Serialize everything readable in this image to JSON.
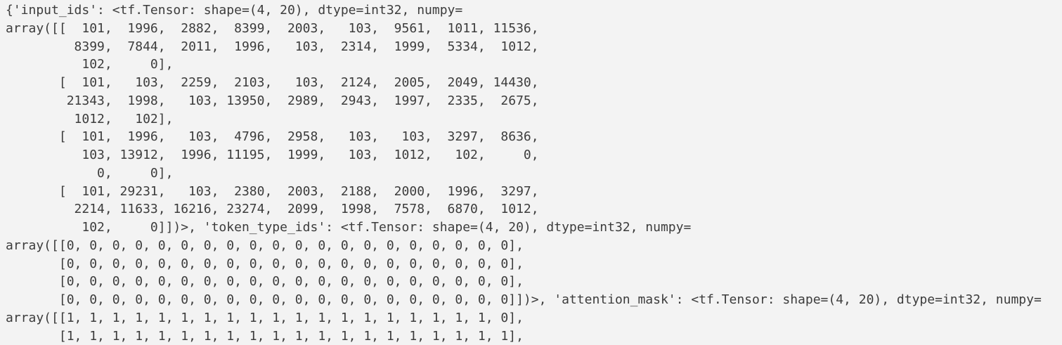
{
  "colors": {
    "background": "#f3f3f3",
    "text": "#3c3c3c"
  },
  "console": {
    "lines": [
      "{'input_ids': <tf.Tensor: shape=(4, 20), dtype=int32, numpy=",
      "array([[  101,  1996,  2882,  8399,  2003,   103,  9561,  1011, 11536,",
      "         8399,  7844,  2011,  1996,   103,  2314,  1999,  5334,  1012,",
      "          102,     0],",
      "       [  101,   103,  2259,  2103,   103,  2124,  2005,  2049, 14430,",
      "        21343,  1998,   103, 13950,  2989,  2943,  1997,  2335,  2675,",
      "         1012,   102],",
      "       [  101,  1996,   103,  4796,  2958,   103,   103,  3297,  8636,",
      "          103, 13912,  1996, 11195,  1999,   103,  1012,   102,     0,",
      "            0,     0],",
      "       [  101, 29231,   103,  2380,  2003,  2188,  2000,  1996,  3297,",
      "         2214, 11633, 16216, 23274,  2099,  1998,  7578,  6870,  1012,",
      "          102,     0]])>, 'token_type_ids': <tf.Tensor: shape=(4, 20), dtype=int32, numpy=",
      "array([[0, 0, 0, 0, 0, 0, 0, 0, 0, 0, 0, 0, 0, 0, 0, 0, 0, 0, 0, 0],",
      "       [0, 0, 0, 0, 0, 0, 0, 0, 0, 0, 0, 0, 0, 0, 0, 0, 0, 0, 0, 0],",
      "       [0, 0, 0, 0, 0, 0, 0, 0, 0, 0, 0, 0, 0, 0, 0, 0, 0, 0, 0, 0],",
      "       [0, 0, 0, 0, 0, 0, 0, 0, 0, 0, 0, 0, 0, 0, 0, 0, 0, 0, 0, 0]])>, 'attention_mask': <tf.Tensor: shape=(4, 20), dtype=int32, numpy=",
      "array([[1, 1, 1, 1, 1, 1, 1, 1, 1, 1, 1, 1, 1, 1, 1, 1, 1, 1, 1, 0],",
      "       [1, 1, 1, 1, 1, 1, 1, 1, 1, 1, 1, 1, 1, 1, 1, 1, 1, 1, 1, 1],"
    ]
  },
  "tensors": {
    "input_ids": {
      "shape": "(4, 20)",
      "dtype": "int32",
      "rows": [
        [
          101,
          1996,
          2882,
          8399,
          2003,
          103,
          9561,
          1011,
          11536,
          8399,
          7844,
          2011,
          1996,
          103,
          2314,
          1999,
          5334,
          1012,
          102,
          0
        ],
        [
          101,
          103,
          2259,
          2103,
          103,
          2124,
          2005,
          2049,
          14430,
          21343,
          1998,
          103,
          13950,
          2989,
          2943,
          1997,
          2335,
          2675,
          1012,
          102
        ],
        [
          101,
          1996,
          103,
          4796,
          2958,
          103,
          103,
          3297,
          8636,
          103,
          13912,
          1996,
          11195,
          1999,
          103,
          1012,
          102,
          0,
          0,
          0
        ],
        [
          101,
          29231,
          103,
          2380,
          2003,
          2188,
          2000,
          1996,
          3297,
          2214,
          11633,
          16216,
          23274,
          2099,
          1998,
          7578,
          6870,
          1012,
          102,
          0
        ]
      ]
    },
    "token_type_ids": {
      "shape": "(4, 20)",
      "dtype": "int32",
      "rows": [
        [
          0,
          0,
          0,
          0,
          0,
          0,
          0,
          0,
          0,
          0,
          0,
          0,
          0,
          0,
          0,
          0,
          0,
          0,
          0,
          0
        ],
        [
          0,
          0,
          0,
          0,
          0,
          0,
          0,
          0,
          0,
          0,
          0,
          0,
          0,
          0,
          0,
          0,
          0,
          0,
          0,
          0
        ],
        [
          0,
          0,
          0,
          0,
          0,
          0,
          0,
          0,
          0,
          0,
          0,
          0,
          0,
          0,
          0,
          0,
          0,
          0,
          0,
          0
        ],
        [
          0,
          0,
          0,
          0,
          0,
          0,
          0,
          0,
          0,
          0,
          0,
          0,
          0,
          0,
          0,
          0,
          0,
          0,
          0,
          0
        ]
      ]
    },
    "attention_mask": {
      "shape": "(4, 20)",
      "dtype": "int32",
      "visible_rows": [
        [
          1,
          1,
          1,
          1,
          1,
          1,
          1,
          1,
          1,
          1,
          1,
          1,
          1,
          1,
          1,
          1,
          1,
          1,
          1,
          0
        ],
        [
          1,
          1,
          1,
          1,
          1,
          1,
          1,
          1,
          1,
          1,
          1,
          1,
          1,
          1,
          1,
          1,
          1,
          1,
          1,
          1
        ]
      ]
    }
  }
}
